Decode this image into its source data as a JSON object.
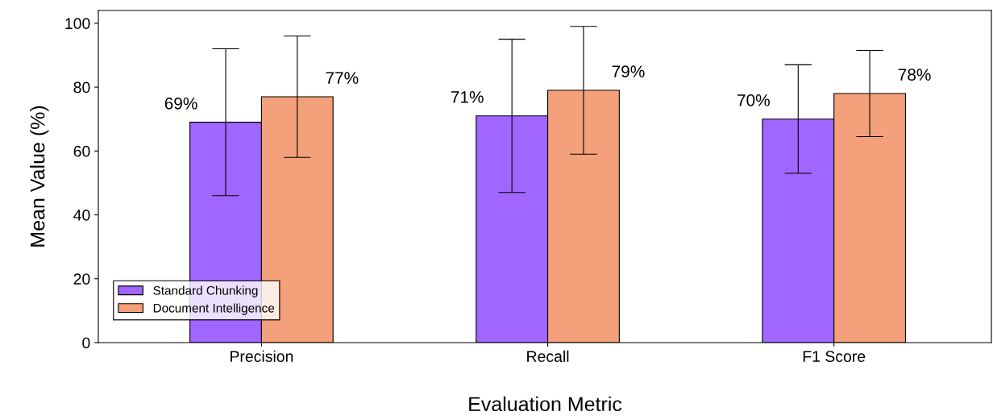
{
  "chart_data": {
    "type": "bar",
    "xlabel": "Evaluation Metric",
    "ylabel": "Mean Value (%)",
    "categories": [
      "Precision",
      "Recall",
      "F1 Score"
    ],
    "series": [
      {
        "name": "Standard Chunking",
        "color": "#a066ff",
        "values": [
          69,
          71,
          70
        ],
        "errors": [
          23,
          24,
          17
        ],
        "value_labels": [
          "69%",
          "71%",
          "70%"
        ]
      },
      {
        "name": "Document Intelligence",
        "color": "#f4a07a",
        "values": [
          77,
          79,
          78
        ],
        "errors": [
          19,
          20,
          13.5
        ],
        "value_labels": [
          "77%",
          "79%",
          "78%"
        ]
      }
    ],
    "ylim": [
      0,
      104
    ],
    "yticks": [
      0,
      20,
      40,
      60,
      80,
      100
    ],
    "grid": false,
    "legend": "bottom left"
  }
}
